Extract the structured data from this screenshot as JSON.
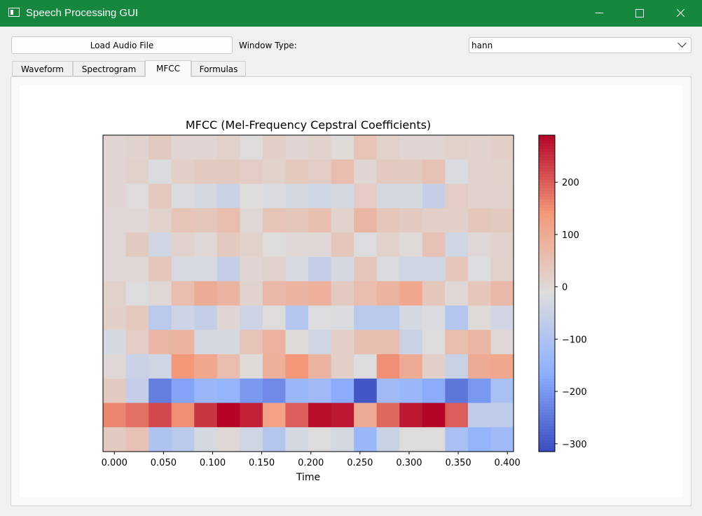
{
  "window": {
    "title": "Speech Processing GUI"
  },
  "toolbar": {
    "load_label": "Load Audio File",
    "window_type_label": "Window Type:",
    "window_type_value": "hann"
  },
  "tabs": [
    {
      "label": "Waveform"
    },
    {
      "label": "Spectrogram"
    },
    {
      "label": "MFCC",
      "active": true
    },
    {
      "label": "Formulas"
    }
  ],
  "chart_data": {
    "type": "heatmap",
    "title": "MFCC (Mel-Frequency Cepstral Coefficients)",
    "xlabel": "Time",
    "ylabel": "",
    "x_ticks": [
      "0.000",
      "0.050",
      "0.100",
      "0.150",
      "0.200",
      "0.250",
      "0.300",
      "0.350",
      "0.400"
    ],
    "x_tick_values": [
      0,
      0.05,
      0.1,
      0.15,
      0.2,
      0.25,
      0.3,
      0.35,
      0.4
    ],
    "xlim": [
      -0.0116,
      0.4063
    ],
    "n_frames": 18,
    "n_coefficients": 13,
    "colorbar": {
      "ticks": [
        "200",
        "100",
        "0",
        "−100",
        "−200",
        "−300"
      ],
      "tick_values": [
        200,
        100,
        0,
        -100,
        -200,
        -300
      ],
      "range": [
        -315,
        290
      ],
      "colormap": "coolwarm"
    },
    "values_top_to_bottom": [
      [
        5,
        10,
        30,
        5,
        5,
        15,
        -10,
        20,
        5,
        10,
        -5,
        45,
        15,
        5,
        5,
        15,
        10,
        20
      ],
      [
        5,
        15,
        -20,
        20,
        30,
        30,
        25,
        15,
        35,
        25,
        60,
        5,
        30,
        30,
        50,
        -20,
        10,
        15
      ],
      [
        5,
        -10,
        35,
        -20,
        -30,
        -50,
        -10,
        -20,
        -30,
        -40,
        -30,
        25,
        -30,
        -30,
        -60,
        25,
        10,
        10
      ],
      [
        0,
        0,
        15,
        45,
        40,
        60,
        0,
        45,
        40,
        55,
        10,
        75,
        40,
        30,
        20,
        20,
        40,
        30
      ],
      [
        0,
        30,
        -40,
        10,
        0,
        30,
        15,
        -10,
        0,
        0,
        40,
        -15,
        15,
        -5,
        50,
        -40,
        0,
        10
      ],
      [
        0,
        0,
        40,
        -25,
        -25,
        -60,
        5,
        10,
        -25,
        -60,
        -30,
        40,
        -20,
        -40,
        -40,
        40,
        -15,
        15
      ],
      [
        15,
        -15,
        0,
        60,
        100,
        80,
        10,
        70,
        80,
        90,
        30,
        60,
        80,
        110,
        40,
        0,
        40,
        70
      ],
      [
        20,
        35,
        -80,
        -45,
        -60,
        5,
        -45,
        -10,
        -90,
        -15,
        -20,
        -80,
        -80,
        -30,
        -20,
        -90,
        -5,
        -35
      ],
      [
        -30,
        25,
        75,
        80,
        -30,
        -30,
        45,
        85,
        -5,
        -40,
        20,
        55,
        55,
        -50,
        -10,
        60,
        75,
        0
      ],
      [
        0,
        -50,
        -40,
        140,
        110,
        60,
        -5,
        90,
        140,
        80,
        20,
        -15,
        150,
        100,
        20,
        -50,
        100,
        110
      ],
      [
        30,
        -60,
        -240,
        -180,
        -140,
        -150,
        -200,
        -220,
        -140,
        -130,
        -170,
        -300,
        -130,
        -140,
        -170,
        -250,
        -200,
        -110
      ],
      [
        160,
        180,
        220,
        150,
        240,
        290,
        260,
        120,
        200,
        280,
        270,
        100,
        190,
        270,
        290,
        200,
        -70,
        -70
      ],
      [
        30,
        50,
        -100,
        -80,
        -30,
        0,
        -40,
        -90,
        -30,
        -10,
        -30,
        -140,
        -50,
        -10,
        -10,
        -110,
        -150,
        -130
      ]
    ]
  }
}
